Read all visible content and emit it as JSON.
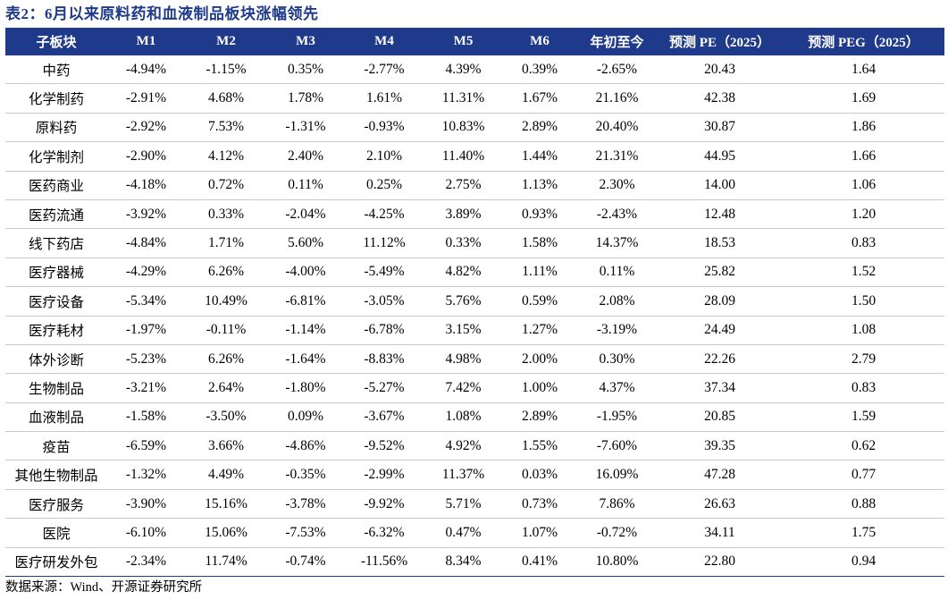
{
  "caption": "表2：6月以来原料药和血液制品板块涨幅领先",
  "columns": [
    "子板块",
    "M1",
    "M2",
    "M3",
    "M4",
    "M5",
    "M6",
    "年初至今",
    "预测 PE（2025）",
    "预测 PEG（2025）"
  ],
  "rows": [
    [
      "中药",
      "-4.94%",
      "-1.15%",
      "0.35%",
      "-2.77%",
      "4.39%",
      "0.39%",
      "-2.65%",
      "20.43",
      "1.64"
    ],
    [
      "化学制药",
      "-2.91%",
      "4.68%",
      "1.78%",
      "1.61%",
      "11.31%",
      "1.67%",
      "21.16%",
      "42.38",
      "1.69"
    ],
    [
      "原料药",
      "-2.92%",
      "7.53%",
      "-1.31%",
      "-0.93%",
      "10.83%",
      "2.89%",
      "20.40%",
      "30.87",
      "1.86"
    ],
    [
      "化学制剂",
      "-2.90%",
      "4.12%",
      "2.40%",
      "2.10%",
      "11.40%",
      "1.44%",
      "21.31%",
      "44.95",
      "1.66"
    ],
    [
      "医药商业",
      "-4.18%",
      "0.72%",
      "0.11%",
      "0.25%",
      "2.75%",
      "1.13%",
      "2.30%",
      "14.00",
      "1.06"
    ],
    [
      "医药流通",
      "-3.92%",
      "0.33%",
      "-2.04%",
      "-4.25%",
      "3.89%",
      "0.93%",
      "-2.43%",
      "12.48",
      "1.20"
    ],
    [
      "线下药店",
      "-4.84%",
      "1.71%",
      "5.60%",
      "11.12%",
      "0.33%",
      "1.58%",
      "14.37%",
      "18.53",
      "0.83"
    ],
    [
      "医疗器械",
      "-4.29%",
      "6.26%",
      "-4.00%",
      "-5.49%",
      "4.82%",
      "1.11%",
      "0.11%",
      "25.82",
      "1.52"
    ],
    [
      "医疗设备",
      "-5.34%",
      "10.49%",
      "-6.81%",
      "-3.05%",
      "5.76%",
      "0.59%",
      "2.08%",
      "28.09",
      "1.50"
    ],
    [
      "医疗耗材",
      "-1.97%",
      "-0.11%",
      "-1.14%",
      "-6.78%",
      "3.15%",
      "1.27%",
      "-3.19%",
      "24.49",
      "1.08"
    ],
    [
      "体外诊断",
      "-5.23%",
      "6.26%",
      "-1.64%",
      "-8.83%",
      "4.98%",
      "2.00%",
      "0.30%",
      "22.26",
      "2.79"
    ],
    [
      "生物制品",
      "-3.21%",
      "2.64%",
      "-1.80%",
      "-5.27%",
      "7.42%",
      "1.00%",
      "4.37%",
      "37.34",
      "0.83"
    ],
    [
      "血液制品",
      "-1.58%",
      "-3.50%",
      "0.09%",
      "-3.67%",
      "1.08%",
      "2.89%",
      "-1.95%",
      "20.85",
      "1.59"
    ],
    [
      "疫苗",
      "-6.59%",
      "3.66%",
      "-4.86%",
      "-9.52%",
      "4.92%",
      "1.55%",
      "-7.60%",
      "39.35",
      "0.62"
    ],
    [
      "其他生物制品",
      "-1.32%",
      "4.49%",
      "-0.35%",
      "-2.99%",
      "11.37%",
      "0.03%",
      "16.09%",
      "47.28",
      "0.77"
    ],
    [
      "医疗服务",
      "-3.90%",
      "15.16%",
      "-3.78%",
      "-9.92%",
      "5.71%",
      "0.73%",
      "7.86%",
      "26.63",
      "0.88"
    ],
    [
      "医院",
      "-6.10%",
      "15.06%",
      "-7.53%",
      "-6.32%",
      "0.47%",
      "1.07%",
      "-0.72%",
      "34.11",
      "1.75"
    ],
    [
      "医疗研发外包",
      "-2.34%",
      "11.74%",
      "-0.74%",
      "-11.56%",
      "8.34%",
      "0.41%",
      "10.80%",
      "22.80",
      "0.94"
    ]
  ],
  "source": "数据来源：Wind、开源证券研究所",
  "colors": {
    "header_bg": "#1f3a8a",
    "header_text": "#ffffff",
    "caption_text": "#1f3a8a",
    "row_divider": "#c9c9c9"
  }
}
